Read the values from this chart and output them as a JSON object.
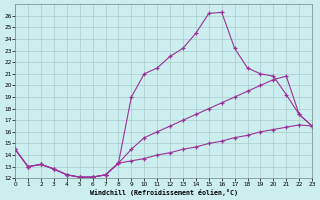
{
  "bg_color": "#cceeee",
  "grid_color": "#aacccc",
  "line_color": "#993399",
  "xlim": [
    0,
    23
  ],
  "ylim": [
    12,
    27
  ],
  "xticks": [
    0,
    1,
    2,
    3,
    4,
    5,
    6,
    7,
    8,
    9,
    10,
    11,
    12,
    13,
    14,
    15,
    16,
    17,
    18,
    19,
    20,
    21,
    22,
    23
  ],
  "yticks": [
    12,
    13,
    14,
    15,
    16,
    17,
    18,
    19,
    20,
    21,
    22,
    23,
    24,
    25,
    26
  ],
  "xlabel": "Windchill (Refroidissement éolien,°C)",
  "line1_x": [
    0,
    1,
    2,
    3,
    4,
    5,
    6,
    7,
    8,
    9,
    10,
    11,
    12,
    13,
    14,
    15,
    16,
    17,
    18,
    19,
    20,
    21,
    22,
    23
  ],
  "line1_y": [
    14.5,
    13.0,
    13.2,
    12.8,
    12.3,
    12.1,
    12.1,
    12.3,
    13.3,
    19.0,
    21.0,
    21.5,
    22.5,
    23.2,
    24.5,
    26.2,
    26.3,
    23.2,
    21.5,
    21.0,
    20.8,
    19.2,
    17.5,
    16.5
  ],
  "line2_x": [
    0,
    1,
    2,
    3,
    4,
    5,
    6,
    7,
    8,
    9,
    10,
    11,
    12,
    13,
    14,
    15,
    16,
    17,
    18,
    19,
    20,
    21,
    22,
    23
  ],
  "line2_y": [
    14.5,
    13.0,
    13.2,
    12.8,
    12.3,
    12.1,
    12.1,
    12.3,
    13.3,
    14.5,
    15.5,
    16.0,
    16.5,
    17.0,
    17.5,
    18.0,
    18.5,
    19.0,
    19.5,
    20.0,
    20.5,
    20.8,
    17.5,
    16.5
  ],
  "line3_x": [
    0,
    1,
    2,
    3,
    4,
    5,
    6,
    7,
    8,
    9,
    10,
    11,
    12,
    13,
    14,
    15,
    16,
    17,
    18,
    19,
    20,
    21,
    22,
    23
  ],
  "line3_y": [
    14.5,
    13.0,
    13.2,
    12.8,
    12.3,
    12.1,
    12.1,
    12.3,
    13.3,
    13.5,
    13.7,
    14.0,
    14.2,
    14.5,
    14.7,
    15.0,
    15.2,
    15.5,
    15.7,
    16.0,
    16.2,
    16.4,
    16.6,
    16.5
  ]
}
